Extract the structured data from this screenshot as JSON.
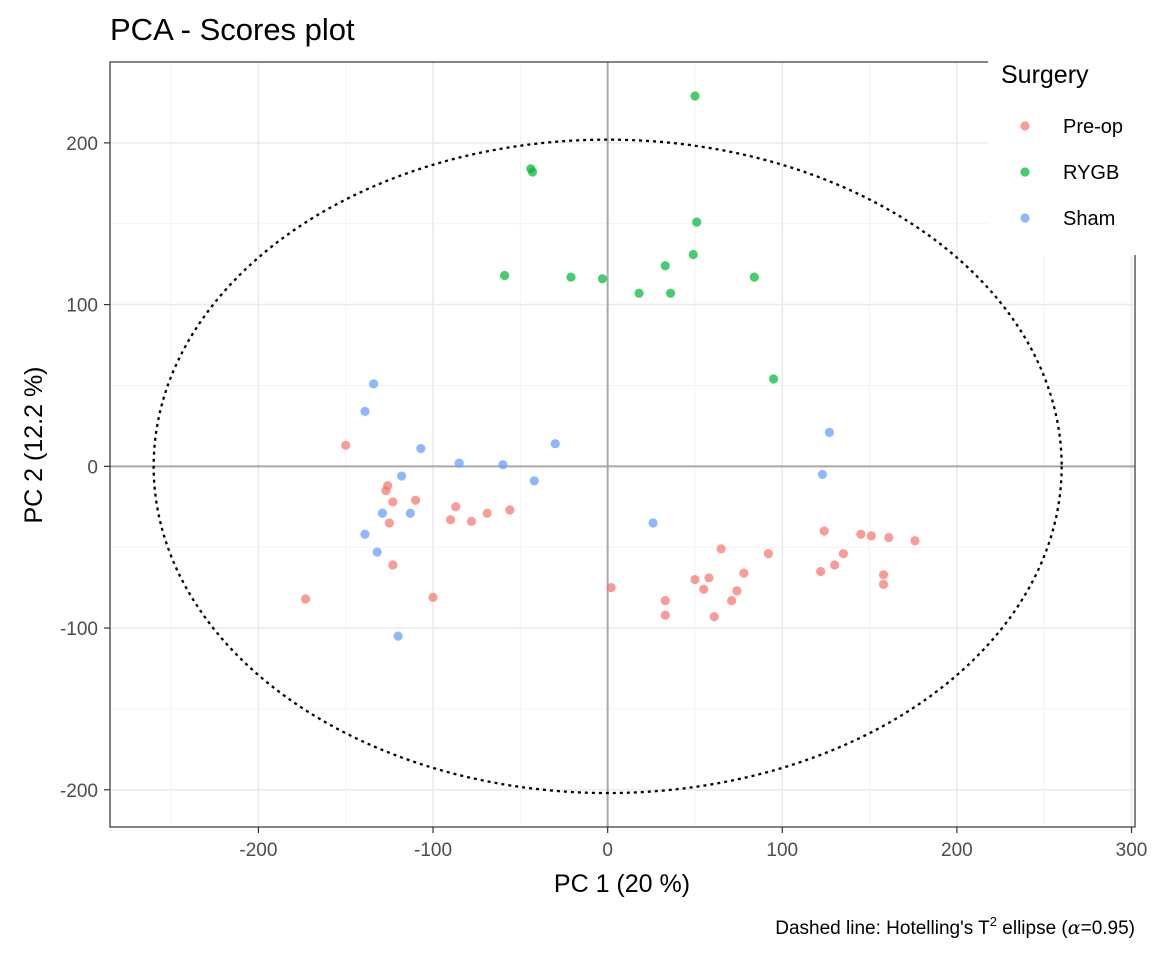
{
  "chart_data": {
    "type": "scatter",
    "title": "PCA - Scores plot",
    "xlabel": "PC 1 (20 %)",
    "ylabel": "PC 2 (12.2 %)",
    "caption": {
      "main": "Dashed line: Hotelling's T",
      "superscript": "2",
      "rest": " ellipse (",
      "alpha_symbol": "α",
      "alpha_value": "=0.95)"
    },
    "xlim": [
      -285,
      302
    ],
    "ylim": [
      -223,
      250
    ],
    "x_ticks": [
      -200,
      -100,
      0,
      100,
      200,
      300
    ],
    "x_tick_labels": [
      "-200",
      "-100",
      "0",
      "100",
      "200",
      "300"
    ],
    "y_ticks": [
      -200,
      -100,
      0,
      100,
      200
    ],
    "y_tick_labels": [
      "-200",
      "-100",
      "0",
      "100",
      "200"
    ],
    "x_minor_ticks": [
      -250,
      -150,
      -50,
      50,
      150,
      250
    ],
    "y_minor_ticks": [
      -150,
      -50,
      50,
      150
    ],
    "grid": true,
    "reference_lines": {
      "x": 0,
      "y": 0
    },
    "ellipse": {
      "center": [
        0,
        0
      ],
      "rx": 260,
      "ry": 202,
      "style": "dotted",
      "color": "#000000"
    },
    "legend": {
      "title": "Surgery",
      "placement": "top-right",
      "entries": [
        "Pre-op",
        "RYGB",
        "Sham"
      ]
    },
    "colors": {
      "Pre-op": "#F8766D",
      "RYGB": "#00BA38",
      "Sham": "#619CFF"
    },
    "series": [
      {
        "name": "Pre-op",
        "points": [
          [
            -150,
            13
          ],
          [
            -126,
            -12
          ],
          [
            -127,
            -15
          ],
          [
            -123,
            -22
          ],
          [
            -110,
            -21
          ],
          [
            -125,
            -35
          ],
          [
            -123,
            -61
          ],
          [
            -173,
            -82
          ],
          [
            -100,
            -81
          ],
          [
            -87,
            -25
          ],
          [
            -90,
            -33
          ],
          [
            -78,
            -34
          ],
          [
            -69,
            -29
          ],
          [
            -56,
            -27
          ],
          [
            2,
            -75
          ],
          [
            33,
            -83
          ],
          [
            33,
            -92
          ],
          [
            50,
            -70
          ],
          [
            55,
            -76
          ],
          [
            58,
            -69
          ],
          [
            65,
            -51
          ],
          [
            61,
            -93
          ],
          [
            71,
            -83
          ],
          [
            74,
            -77
          ],
          [
            78,
            -66
          ],
          [
            92,
            -54
          ],
          [
            122,
            -65
          ],
          [
            124,
            -40
          ],
          [
            130,
            -61
          ],
          [
            135,
            -54
          ],
          [
            145,
            -42
          ],
          [
            151,
            -43
          ],
          [
            161,
            -44
          ],
          [
            176,
            -46
          ],
          [
            158,
            -67
          ],
          [
            158,
            -73
          ]
        ]
      },
      {
        "name": "RYGB",
        "points": [
          [
            50,
            229
          ],
          [
            -44,
            184
          ],
          [
            -43,
            182
          ],
          [
            51,
            151
          ],
          [
            49,
            131
          ],
          [
            33,
            124
          ],
          [
            -59,
            118
          ],
          [
            -21,
            117
          ],
          [
            -3,
            116
          ],
          [
            84,
            117
          ],
          [
            18,
            107
          ],
          [
            36,
            107
          ],
          [
            95,
            54
          ]
        ]
      },
      {
        "name": "Sham",
        "points": [
          [
            -134,
            51
          ],
          [
            -139,
            34
          ],
          [
            -107,
            11
          ],
          [
            -85,
            2
          ],
          [
            -60,
            1
          ],
          [
            -30,
            14
          ],
          [
            -42,
            -9
          ],
          [
            -118,
            -6
          ],
          [
            -129,
            -29
          ],
          [
            -113,
            -29
          ],
          [
            -139,
            -42
          ],
          [
            -132,
            -53
          ],
          [
            -120,
            -105
          ],
          [
            26,
            -35
          ],
          [
            127,
            21
          ],
          [
            123,
            -5
          ]
        ]
      }
    ]
  }
}
